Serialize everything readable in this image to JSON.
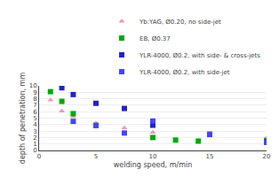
{
  "chart_data": {
    "type": "scatter",
    "xlabel": "welding speed, m/min",
    "ylabel": "depth of penetration, mm",
    "xlim": [
      0,
      20
    ],
    "ylim": [
      0.0,
      10.0
    ],
    "xticks": [
      0,
      5,
      10,
      15,
      20
    ],
    "yticks": [
      0,
      1,
      2,
      3,
      4,
      5,
      6,
      7,
      8,
      9,
      10
    ],
    "grid": "y",
    "legend": "upper right",
    "series": [
      {
        "name": "Yb:YAG, Ø0.20, no side-jet",
        "color": "#ee99bb",
        "marker": "triangle",
        "x": [
          1,
          2,
          3,
          5,
          7.5,
          10,
          20
        ],
        "values": [
          7.8,
          6.1,
          5.25,
          4.2,
          3.5,
          2.8,
          1.9
        ]
      },
      {
        "name": "EB, Ø0.37",
        "color": "#00aa00",
        "marker": "square",
        "x": [
          1,
          2,
          3,
          5,
          10,
          12,
          14,
          20
        ],
        "values": [
          9.1,
          7.6,
          5.7,
          3.9,
          2.0,
          1.6,
          1.45,
          1.55
        ]
      },
      {
        "name": "YLR-4000, Ø0.2, with side- & cross-jets",
        "color": "#2222cc",
        "marker": "square",
        "x": [
          2,
          3,
          5,
          7.5,
          10,
          15,
          20
        ],
        "values": [
          9.7,
          8.65,
          7.3,
          6.5,
          3.9,
          2.5,
          1.3
        ]
      },
      {
        "name": "YLR-4000, Ø0.2, with side-jet",
        "color": "#4444ff",
        "marker": "square",
        "x": [
          3,
          5,
          7.5,
          10,
          15,
          20
        ],
        "values": [
          4.5,
          3.85,
          2.7,
          4.55,
          2.5,
          1.25
        ]
      }
    ]
  }
}
